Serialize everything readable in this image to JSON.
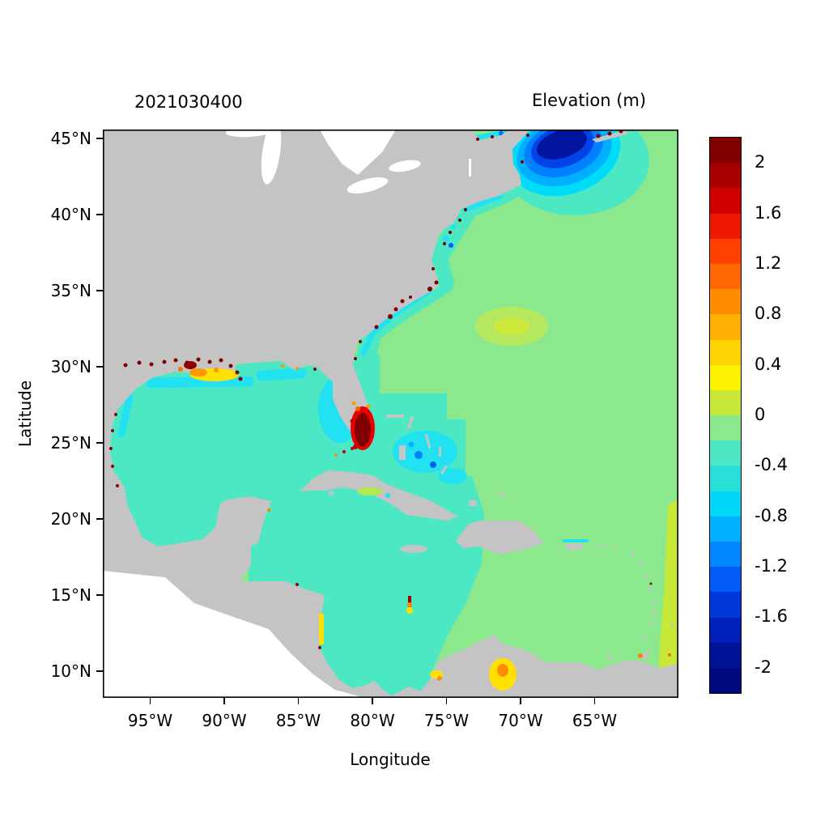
{
  "figure": {
    "timestamp": "2021030400",
    "title": "Elevation (m)"
  },
  "axes": {
    "x_label": "Longitude",
    "y_label": "Latitude",
    "x_ticks": [
      {
        "label": "95°W",
        "deg_west": 95
      },
      {
        "label": "90°W",
        "deg_west": 90
      },
      {
        "label": "85°W",
        "deg_west": 85
      },
      {
        "label": "80°W",
        "deg_west": 80
      },
      {
        "label": "75°W",
        "deg_west": 75
      },
      {
        "label": "70°W",
        "deg_west": 70
      },
      {
        "label": "65°W",
        "deg_west": 65
      }
    ],
    "y_ticks": [
      {
        "label": "45°N",
        "deg_north": 45
      },
      {
        "label": "40°N",
        "deg_north": 40
      },
      {
        "label": "35°N",
        "deg_north": 35
      },
      {
        "label": "30°N",
        "deg_north": 30
      },
      {
        "label": "25°N",
        "deg_north": 25
      },
      {
        "label": "20°N",
        "deg_north": 20
      },
      {
        "label": "15°N",
        "deg_north": 15
      },
      {
        "label": "10°N",
        "deg_north": 10
      }
    ]
  },
  "colorbar": {
    "units": "m",
    "tick_labels": [
      "2",
      "1.6",
      "1.2",
      "0.8",
      "0.4",
      "0",
      "-0.4",
      "-0.8",
      "-1.2",
      "-1.6",
      "-2"
    ],
    "tick_values": [
      2,
      1.6,
      1.2,
      0.8,
      0.4,
      0,
      -0.4,
      -0.8,
      -1.2,
      -1.6,
      -2
    ],
    "palette_top_to_bottom": [
      "#800000",
      "#a80000",
      "#d00000",
      "#f01800",
      "#ff4000",
      "#ff6800",
      "#ff8c00",
      "#ffb000",
      "#ffd400",
      "#fff200",
      "#c8e838",
      "#8ce88c",
      "#4ce8c4",
      "#28e0d8",
      "#00d8f8",
      "#00b0ff",
      "#0088ff",
      "#005cf4",
      "#0038dc",
      "#0020bc",
      "#001298",
      "#000a80"
    ]
  },
  "chart_data": {
    "type": "heatmap",
    "title": "Elevation (m)",
    "timestamp": "2021030400",
    "xlabel": "Longitude",
    "ylabel": "Latitude",
    "x_range_deg_west": [
      98.2,
      59.3
    ],
    "y_range_deg_north": [
      8.3,
      45.6
    ],
    "colorbar_values": [
      2,
      1.6,
      1.2,
      0.8,
      0.4,
      0,
      -0.4,
      -0.8,
      -1.2,
      -1.6,
      -2
    ],
    "land_color": "#c4c4c4",
    "no_data_color": "#ffffff",
    "regions": [
      {
        "region": "Open Atlantic east of ~72W",
        "approx_value_m": -0.1,
        "color": "light green"
      },
      {
        "region": "Gulf of Mexico interior",
        "approx_value_m": -0.3,
        "color": "turquoise"
      },
      {
        "region": "Western Caribbean Sea",
        "approx_value_m": -0.3,
        "color": "turquoise"
      },
      {
        "region": "Gulf of Maine / Scotian Shelf (~68W, 43N)",
        "approx_value_m": -2.2,
        "color": "dark blue",
        "note": "field minimum"
      },
      {
        "region": "South Florida coast (~80.5W, 26N)",
        "approx_value_m": 2.2,
        "color": "dark red",
        "note": "field maximum"
      },
      {
        "region": "West Florida shelf",
        "approx_value_m": -0.7,
        "color": "cyan"
      },
      {
        "region": "Louisiana-Texas shelf (~91W, 29.5N)",
        "approx_value_m": 0.6,
        "color": "yellow-orange"
      },
      {
        "region": "US southeast coastal band (Florida to Cape Hatteras)",
        "approx_value_m": -0.5,
        "color": "turquoise-cyan"
      },
      {
        "region": "Bahamas banks",
        "approx_value_m": -0.8,
        "color": "cyan with blue cells"
      },
      {
        "region": "Subtropical Atlantic patch (~70W, 31.5N)",
        "approx_value_m": 0.3,
        "color": "yellow-green"
      },
      {
        "region": "Eastern boundary strip (~60W)",
        "approx_value_m": 0.3,
        "color": "yellow-green"
      },
      {
        "region": "Southeast corner (~60W, 9N)",
        "approx_value_m": 0.8,
        "color": "yellow-orange"
      },
      {
        "region": "Lake Maracaibo / Venezuelan coast (~71.5W, 10N)",
        "approx_value_m": 0.6,
        "color": "yellow"
      },
      {
        "region": "Scattered coastal grid cells along Gulf and Atlantic shores",
        "approx_value_m": 2.0,
        "note": "dark red specks"
      }
    ]
  }
}
